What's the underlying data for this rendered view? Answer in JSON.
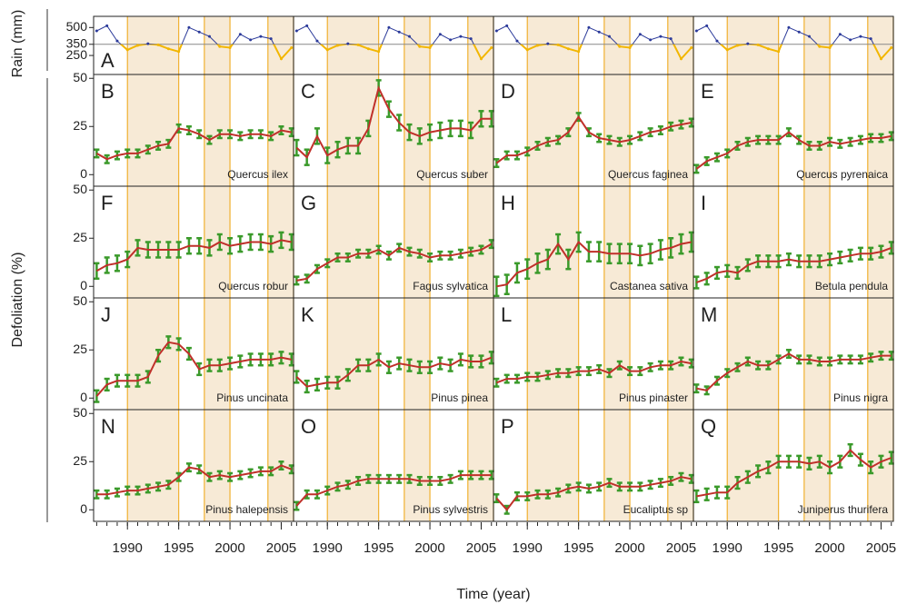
{
  "chart_data": {
    "type": "line",
    "y_label_rain": "Rain (mm)",
    "y_label": "Defoliation (%)",
    "x_label": "Time (year)",
    "x": [
      1987,
      1988,
      1989,
      1990,
      1991,
      1992,
      1993,
      1994,
      1995,
      1996,
      1997,
      1998,
      1999,
      2000,
      2001,
      2002,
      2003,
      2004,
      2005,
      2006
    ],
    "xlim": [
      1986.7,
      2006.2
    ],
    "xticks": [
      1990,
      1995,
      2000,
      2005
    ],
    "shaded_periods": [
      [
        1990,
        1995
      ],
      [
        1997.5,
        2000
      ],
      [
        2003.7,
        2006.2
      ]
    ],
    "rain": {
      "label": "A",
      "color": "#2b3a9a",
      "below_color": "#f2b600",
      "values": [
        470,
        516,
        380,
        300,
        340,
        355,
        345,
        310,
        285,
        500,
        460,
        420,
        330,
        320,
        440,
        390,
        420,
        400,
        220,
        320
      ],
      "ylim": [
        80,
        600
      ],
      "yticks": [
        250,
        350,
        500
      ],
      "reference_line": 350
    },
    "ylim": [
      -6,
      52
    ],
    "yticks": [
      0,
      25,
      50
    ],
    "line_color": "#c0302a",
    "error_color": "#3a9a2a",
    "panels": [
      {
        "label": "B",
        "name": "Quercus ilex",
        "error": 2,
        "values": [
          11,
          8,
          10,
          11,
          11,
          13,
          15,
          16,
          24,
          23,
          21,
          18,
          21,
          21,
          20,
          21,
          21,
          20,
          23,
          22
        ]
      },
      {
        "label": "C",
        "name": "Quercus suber",
        "error": 4,
        "values": [
          14,
          9,
          20,
          10,
          13,
          15,
          15,
          24,
          45,
          34,
          27,
          22,
          20,
          22,
          23,
          24,
          24,
          23,
          29,
          29
        ]
      },
      {
        "label": "D",
        "name": "Quercus faginea",
        "error": 2,
        "values": [
          6,
          10,
          10,
          12,
          15,
          17,
          18,
          22,
          30,
          22,
          19,
          18,
          17,
          18,
          20,
          22,
          23,
          25,
          26,
          27
        ]
      },
      {
        "label": "E",
        "name": "Quercus pyrenaica",
        "error": 2,
        "values": [
          3,
          7,
          9,
          11,
          15,
          17,
          18,
          18,
          18,
          22,
          18,
          15,
          15,
          17,
          16,
          17,
          18,
          19,
          19,
          20
        ]
      },
      {
        "label": "F",
        "name": "Quercus robur",
        "error": 4,
        "values": [
          8,
          11,
          12,
          14,
          20,
          19,
          19,
          19,
          19,
          21,
          21,
          20,
          23,
          21,
          22,
          23,
          23,
          22,
          24,
          23
        ]
      },
      {
        "label": "G",
        "name": "Fagus sylvatica",
        "error": 2,
        "values": [
          3,
          4,
          9,
          12,
          15,
          15,
          17,
          17,
          19,
          16,
          20,
          18,
          17,
          15,
          16,
          16,
          17,
          18,
          19,
          22
        ]
      },
      {
        "label": "H",
        "name": "Castanea sativa",
        "error": 5,
        "values": [
          0,
          1,
          7,
          9,
          12,
          14,
          22,
          14,
          23,
          18,
          18,
          17,
          17,
          17,
          16,
          17,
          19,
          20,
          22,
          23
        ]
      },
      {
        "label": "I",
        "name": "Betula pendula",
        "error": 3,
        "values": [
          2,
          4,
          7,
          8,
          7,
          11,
          13,
          13,
          13,
          14,
          13,
          13,
          13,
          14,
          15,
          16,
          17,
          17,
          18,
          20
        ]
      },
      {
        "label": "J",
        "name": "Pinus uncinata",
        "error": 3,
        "values": [
          1,
          7,
          9,
          9,
          9,
          11,
          22,
          29,
          28,
          23,
          15,
          17,
          17,
          18,
          19,
          20,
          20,
          20,
          21,
          20
        ]
      },
      {
        "label": "K",
        "name": "Pinus pinea",
        "error": 3,
        "values": [
          11,
          6,
          7,
          8,
          8,
          12,
          17,
          17,
          20,
          16,
          18,
          17,
          16,
          16,
          18,
          17,
          20,
          19,
          19,
          21
        ]
      },
      {
        "label": "L",
        "name": "Pinus pinaster",
        "error": 2,
        "values": [
          8,
          10,
          10,
          11,
          11,
          12,
          13,
          13,
          14,
          14,
          15,
          13,
          17,
          14,
          14,
          16,
          17,
          17,
          19,
          18
        ]
      },
      {
        "label": "M",
        "name": "Pinus nigra",
        "error": 2,
        "values": [
          5,
          4,
          9,
          13,
          16,
          19,
          17,
          17,
          20,
          23,
          20,
          20,
          19,
          19,
          20,
          20,
          20,
          21,
          22,
          22
        ]
      },
      {
        "label": "N",
        "name": "Pinus halepensis",
        "error": 2,
        "values": [
          8,
          8,
          9,
          10,
          10,
          11,
          12,
          13,
          17,
          22,
          21,
          17,
          18,
          17,
          18,
          19,
          20,
          20,
          23,
          21
        ]
      },
      {
        "label": "O",
        "name": "Pinus sylvestris",
        "error": 2,
        "values": [
          2,
          8,
          8,
          10,
          12,
          13,
          15,
          16,
          16,
          16,
          16,
          16,
          15,
          15,
          15,
          16,
          18,
          18,
          18,
          18
        ]
      },
      {
        "label": "P",
        "name": "Eucaliptus sp",
        "error": 2,
        "values": [
          6,
          0,
          7,
          7,
          8,
          8,
          9,
          11,
          12,
          11,
          12,
          14,
          12,
          12,
          12,
          13,
          14,
          15,
          17,
          16
        ]
      },
      {
        "label": "Q",
        "name": "Juniperus thurifera",
        "error": 3,
        "values": [
          7,
          8,
          9,
          9,
          14,
          17,
          20,
          22,
          25,
          25,
          25,
          24,
          25,
          22,
          25,
          31,
          26,
          22,
          25,
          27
        ]
      }
    ]
  }
}
